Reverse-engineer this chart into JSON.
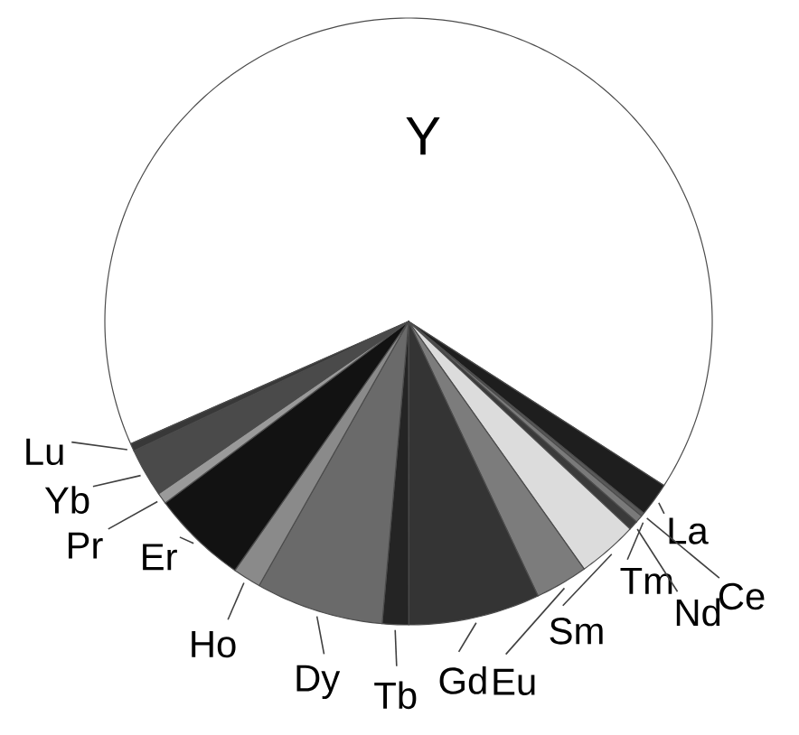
{
  "chart_data": {
    "type": "pie",
    "categories": [
      "Y",
      "La",
      "Ce",
      "Tm",
      "Nd",
      "Sm",
      "Eu",
      "Gd",
      "Tb",
      "Dy",
      "Ho",
      "Er",
      "Pr",
      "Yb",
      "Lu"
    ],
    "values": [
      65.7,
      1.8,
      0.2,
      0.4,
      0.5,
      3.2,
      2.8,
      7.0,
      1.4,
      6.8,
      1.5,
      5.1,
      0.6,
      2.6,
      0.4
    ],
    "colors": [
      "#ffffff",
      "#1e1e1e",
      "#5a5a5a",
      "#7a7a7a",
      "#3a3a3a",
      "#dcdcdc",
      "#7c7c7c",
      "#343434",
      "#242424",
      "#6a6a6a",
      "#8a8a8a",
      "#121212",
      "#9a9a9a",
      "#4a4a4a",
      "#383838"
    ]
  }
}
